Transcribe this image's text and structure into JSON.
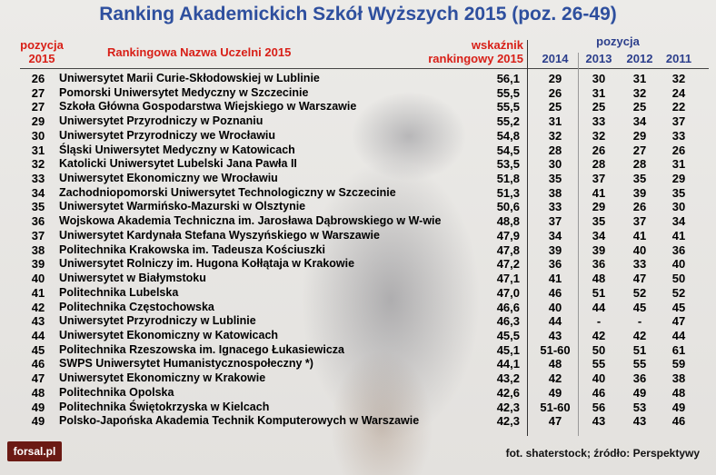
{
  "title": "Ranking Akademickich Szkół Wyższych 2015 (poz. 26-49)",
  "headers": {
    "pozycja_2015_line1": "pozycja",
    "pozycja_2015_line2": "2015",
    "name": "Rankingowa Nazwa Uczelni 2015",
    "indicator_line1": "wskaźnik",
    "indicator_line2": "rankingowy 2015",
    "pozycja": "pozycja",
    "y2014": "2014",
    "y2013": "2013",
    "y2012": "2012",
    "y2011": "2011"
  },
  "rows": [
    {
      "poz": "26",
      "name": "Uniwersytet Marii Curie-Skłodowskiej w Lublinie",
      "val": "56,1",
      "y2014": "29",
      "y2013": "30",
      "y2012": "31",
      "y2011": "32"
    },
    {
      "poz": "27",
      "name": "Pomorski Uniwersytet Medyczny w Szczecinie",
      "val": "55,5",
      "y2014": "26",
      "y2013": "31",
      "y2012": "32",
      "y2011": "24"
    },
    {
      "poz": "27",
      "name": "Szkoła Główna Gospodarstwa Wiejskiego w Warszawie",
      "val": "55,5",
      "y2014": "25",
      "y2013": "25",
      "y2012": "25",
      "y2011": "22"
    },
    {
      "poz": "29",
      "name": "Uniwersytet Przyrodniczy w Poznaniu",
      "val": "55,2",
      "y2014": "31",
      "y2013": "33",
      "y2012": "34",
      "y2011": "37"
    },
    {
      "poz": "30",
      "name": "Uniwersytet Przyrodniczy we Wrocławiu",
      "val": "54,8",
      "y2014": "32",
      "y2013": "32",
      "y2012": "29",
      "y2011": "33"
    },
    {
      "poz": "31",
      "name": "Śląski Uniwersytet Medyczny w Katowicach",
      "val": "54,5",
      "y2014": "28",
      "y2013": "26",
      "y2012": "27",
      "y2011": "26"
    },
    {
      "poz": "32",
      "name": "Katolicki Uniwersytet Lubelski Jana Pawła II",
      "val": "53,5",
      "y2014": "30",
      "y2013": "28",
      "y2012": "28",
      "y2011": "31"
    },
    {
      "poz": "33",
      "name": "Uniwersytet Ekonomiczny we Wrocławiu",
      "val": "51,8",
      "y2014": "35",
      "y2013": "37",
      "y2012": "35",
      "y2011": "29"
    },
    {
      "poz": "34",
      "name": "Zachodniopomorski Uniwersytet Technologiczny w Szczecinie",
      "val": "51,3",
      "y2014": "38",
      "y2013": "41",
      "y2012": "39",
      "y2011": "35"
    },
    {
      "poz": "35",
      "name": "Uniwersytet Warmińsko-Mazurski w Olsztynie",
      "val": "50,6",
      "y2014": "33",
      "y2013": "29",
      "y2012": "26",
      "y2011": "30"
    },
    {
      "poz": "36",
      "name": "Wojskowa Akademia Techniczna im. Jarosława Dąbrowskiego w W-wie",
      "val": "48,8",
      "y2014": "37",
      "y2013": "35",
      "y2012": "37",
      "y2011": "34"
    },
    {
      "poz": "37",
      "name": "Uniwersytet Kardynała Stefana Wyszyńskiego w Warszawie",
      "val": "47,9",
      "y2014": "34",
      "y2013": "34",
      "y2012": "41",
      "y2011": "41"
    },
    {
      "poz": "38",
      "name": "Politechnika Krakowska im. Tadeusza Kościuszki",
      "val": "47,8",
      "y2014": "39",
      "y2013": "39",
      "y2012": "40",
      "y2011": "36"
    },
    {
      "poz": "39",
      "name": "Uniwersytet Rolniczy im. Hugona Kołłątaja w Krakowie",
      "val": "47,2",
      "y2014": "36",
      "y2013": "36",
      "y2012": "33",
      "y2011": "40"
    },
    {
      "poz": "40",
      "name": "Uniwersytet w Białymstoku",
      "val": "47,1",
      "y2014": "41",
      "y2013": "48",
      "y2012": "47",
      "y2011": "50"
    },
    {
      "poz": "41",
      "name": "Politechnika Lubelska",
      "val": "47,0",
      "y2014": "46",
      "y2013": "51",
      "y2012": "52",
      "y2011": "52"
    },
    {
      "poz": "42",
      "name": "Politechnika Częstochowska",
      "val": "46,6",
      "y2014": "40",
      "y2013": "44",
      "y2012": "45",
      "y2011": "45"
    },
    {
      "poz": "43",
      "name": "Uniwersytet Przyrodniczy w Lublinie",
      "val": "46,3",
      "y2014": "44",
      "y2013": "-",
      "y2012": "-",
      "y2011": "47"
    },
    {
      "poz": "44",
      "name": "Uniwersytet Ekonomiczny w Katowicach",
      "val": "45,5",
      "y2014": "43",
      "y2013": "42",
      "y2012": "42",
      "y2011": "44"
    },
    {
      "poz": "45",
      "name": "Politechnika Rzeszowska im. Ignacego Łukasiewicza",
      "val": "45,1",
      "y2014": "51-60",
      "y2013": "50",
      "y2012": "51",
      "y2011": "61"
    },
    {
      "poz": "46",
      "name": "SWPS Uniwersytet Humanistycznospołeczny *)",
      "val": "44,1",
      "y2014": "48",
      "y2013": "55",
      "y2012": "55",
      "y2011": "59"
    },
    {
      "poz": "47",
      "name": "Uniwersytet Ekonomiczny w Krakowie",
      "val": "43,2",
      "y2014": "42",
      "y2013": "40",
      "y2012": "36",
      "y2011": "38"
    },
    {
      "poz": "48",
      "name": "Politechnika Opolska",
      "val": "42,6",
      "y2014": "49",
      "y2013": "46",
      "y2012": "49",
      "y2011": "48"
    },
    {
      "poz": "49",
      "name": "Politechnika Świętokrzyska w Kielcach",
      "val": "42,3",
      "y2014": "51-60",
      "y2013": "56",
      "y2012": "53",
      "y2011": "49"
    },
    {
      "poz": "49",
      "name": "Polsko-Japońska Akademia Technik Komputerowych w Warszawie",
      "val": "42,3",
      "y2014": "47",
      "y2013": "43",
      "y2012": "43",
      "y2011": "46"
    }
  ],
  "logo": "forsal.pl",
  "footer": "fot. shaterstock;  źródło: Perspektywy"
}
